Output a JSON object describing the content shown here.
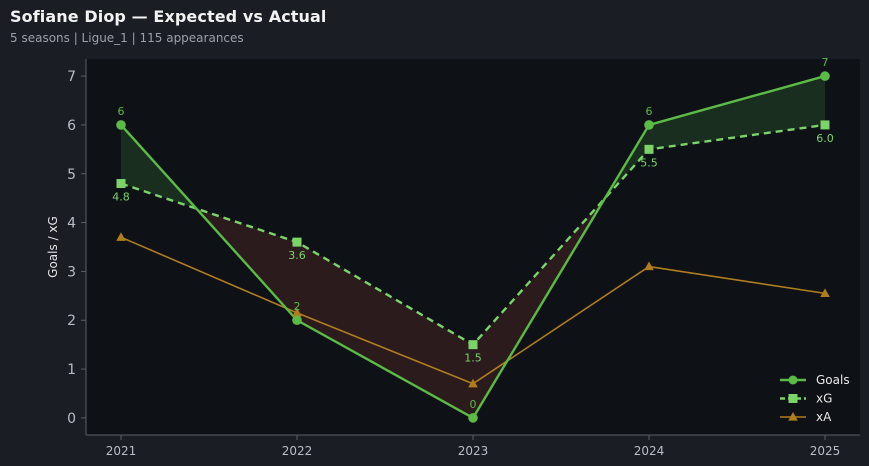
{
  "header": {
    "title": "Sofiane Diop — Expected vs Actual",
    "subtitle": "5 seasons | Ligue_1 | 115 appearances"
  },
  "colors": {
    "background": "#1a1d24",
    "plot_background": "#0e1116",
    "goals": "#5cba47",
    "xg": "#7bd36a",
    "xa": "#b07d1e",
    "over_fill": "#1a3020",
    "under_fill": "#2e1c1e"
  },
  "chart_data": {
    "type": "line",
    "title": "Sofiane Diop — Expected vs Actual",
    "xlabel": "",
    "ylabel": "Goals / xG",
    "x": [
      "2021",
      "2022",
      "2023",
      "2024",
      "2025"
    ],
    "ylim": [
      -0.35,
      7.35
    ],
    "yticks": [
      0,
      1,
      2,
      3,
      4,
      5,
      6,
      7
    ],
    "grid": false,
    "legend_position": "bottom-right",
    "series": [
      {
        "name": "Goals",
        "values": [
          6,
          2,
          0,
          6,
          7
        ],
        "marker": "circle",
        "line": "solid",
        "data_labels": [
          "6",
          "2",
          "0",
          "6",
          "7"
        ]
      },
      {
        "name": "xG",
        "values": [
          4.8,
          3.6,
          1.5,
          5.5,
          6.0
        ],
        "marker": "square",
        "line": "dashed",
        "data_labels": [
          "4.8",
          "3.6",
          "1.5",
          "5.5",
          "6.0"
        ]
      },
      {
        "name": "xA",
        "values": [
          3.7,
          2.15,
          0.7,
          3.1,
          2.55
        ],
        "marker": "triangle",
        "line": "solid"
      }
    ]
  }
}
